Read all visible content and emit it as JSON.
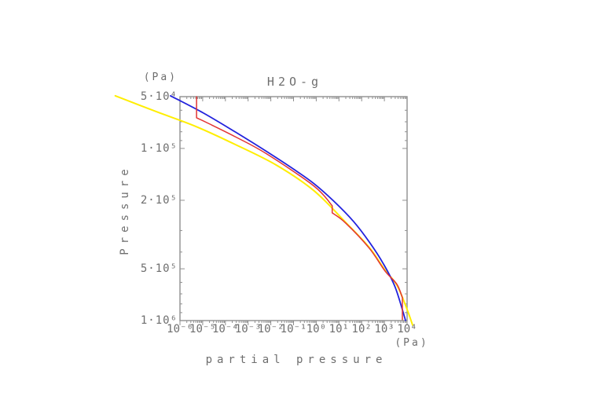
{
  "chart_data": {
    "type": "line",
    "title": "H2O-g",
    "axis_color": "#8f8f8f",
    "text_color": "#6e6e6e",
    "x_axis": {
      "label": "partial pressure",
      "unit": "(Pa)",
      "scale": "log",
      "log10_min": -6,
      "log10_max": 4,
      "major_ticks": [
        {
          "log10": -6,
          "label": "10⁻⁶"
        },
        {
          "log10": -5,
          "label": "10⁻⁵"
        },
        {
          "log10": -4,
          "label": "10⁻⁴"
        },
        {
          "log10": -3,
          "label": "10⁻³"
        },
        {
          "log10": -2,
          "label": "10⁻²"
        },
        {
          "log10": -1,
          "label": "10⁻¹"
        },
        {
          "log10": 0,
          "label": "10⁰"
        },
        {
          "log10": 1,
          "label": "10¹"
        },
        {
          "log10": 2,
          "label": "10²"
        },
        {
          "log10": 3,
          "label": "10³"
        },
        {
          "log10": 4,
          "label": "10⁴"
        }
      ],
      "minor_mantissas": [
        2,
        3,
        4,
        5,
        6,
        7,
        8,
        9
      ]
    },
    "y_axis": {
      "label": "Pressure",
      "unit": "(Pa)",
      "scale": "log-inverted",
      "log10_min": 4.699,
      "log10_max": 6.0,
      "major_ticks": [
        {
          "log10": 4.699,
          "label": "5·10⁴"
        },
        {
          "log10": 5.0,
          "label": "1·10⁵"
        },
        {
          "log10": 5.301,
          "label": "2·10⁵"
        },
        {
          "log10": 5.699,
          "label": "5·10⁵"
        },
        {
          "log10": 6.0,
          "label": "1·10⁶"
        }
      ],
      "minor_ticks_log10": [
        4.778,
        4.845,
        4.903,
        4.954,
        5.477,
        5.602,
        5.778,
        5.845,
        5.903,
        5.954
      ]
    },
    "series": [
      {
        "name": "yellow-line",
        "color": "#ffee00",
        "width": 2,
        "segments": [
          {
            "mode": "smooth",
            "points": [
              [
                -8.847,
                4.694
              ],
              [
                -7.042,
                4.786
              ],
              [
                -5.306,
                4.872
              ],
              [
                -3.569,
                4.977
              ],
              [
                -1.764,
                5.096
              ],
              [
                -0.097,
                5.246
              ],
              [
                1.292,
                5.429
              ],
              [
                2.333,
                5.575
              ],
              [
                3.028,
                5.707
              ],
              [
                3.549,
                5.794
              ],
              [
                4.0,
                5.935
              ],
              [
                4.243,
                6.026
              ]
            ]
          }
        ]
      },
      {
        "name": "blue-line",
        "color": "#2222dd",
        "width": 1.8,
        "segments": [
          {
            "mode": "smooth",
            "points": [
              [
                -6.417,
                4.694
              ],
              [
                -4.958,
                4.795
              ],
              [
                -3.569,
                4.904
              ],
              [
                -2.181,
                5.018
              ],
              [
                -0.966,
                5.123
              ],
              [
                -0.097,
                5.205
              ],
              [
                0.771,
                5.306
              ],
              [
                1.639,
                5.424
              ],
              [
                2.333,
                5.543
              ],
              [
                2.958,
                5.671
              ],
              [
                3.479,
                5.807
              ],
              [
                3.931,
                5.999
              ]
            ]
          }
        ]
      },
      {
        "name": "red-line",
        "color": "#e23333",
        "width": 1.5,
        "segments": [
          {
            "mode": "line",
            "points": [
              [
                -5.271,
                4.699
              ],
              [
                -5.271,
                4.822
              ]
            ]
          },
          {
            "mode": "smooth",
            "points": [
              [
                -5.271,
                4.822
              ],
              [
                -4.75,
                4.854
              ],
              [
                -3.569,
                4.932
              ],
              [
                -2.181,
                5.032
              ],
              [
                -0.097,
                5.219
              ],
              [
                0.701,
                5.333
              ]
            ]
          },
          {
            "mode": "line",
            "points": [
              [
                0.701,
                5.333
              ],
              [
                0.701,
                5.374
              ]
            ]
          },
          {
            "mode": "smooth",
            "points": [
              [
                0.701,
                5.374
              ],
              [
                1.292,
                5.433
              ],
              [
                2.333,
                5.579
              ],
              [
                3.028,
                5.712
              ],
              [
                3.549,
                5.789
              ],
              [
                3.792,
                5.867
              ]
            ]
          },
          {
            "mode": "line",
            "points": [
              [
                3.792,
                5.867
              ],
              [
                3.792,
                5.994
              ]
            ]
          }
        ]
      }
    ]
  }
}
